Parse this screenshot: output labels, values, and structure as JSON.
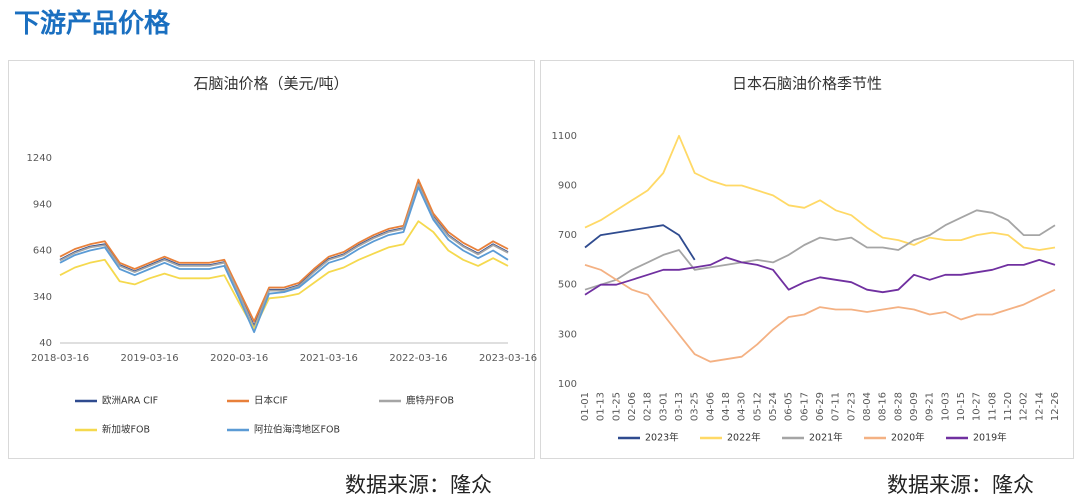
{
  "title": "下游产品价格",
  "footer": {
    "left": "数据来源：隆众",
    "right": "数据来源：隆众"
  },
  "chart_data": [
    {
      "type": "line",
      "title": "石脑油价格（美元/吨）",
      "categories": [
        "2018-03-16",
        null,
        null,
        null,
        null,
        null,
        "2019-03-16",
        null,
        null,
        null,
        null,
        null,
        "2020-03-16",
        null,
        null,
        null,
        null,
        null,
        "2021-03-16",
        null,
        null,
        null,
        null,
        null,
        "2022-03-16",
        null,
        null,
        null,
        null,
        null,
        "2023-03-16"
      ],
      "ylim": [
        40,
        1240
      ],
      "yticks": [
        40,
        340,
        640,
        940,
        1240
      ],
      "series": [
        {
          "name": "欧洲ARA CIF",
          "color": "#2f4b8f",
          "values": [
            580,
            630,
            665,
            680,
            545,
            505,
            545,
            585,
            545,
            545,
            545,
            565,
            360,
            150,
            385,
            385,
            415,
            505,
            585,
            615,
            675,
            725,
            765,
            785,
            1080,
            860,
            740,
            670,
            620,
            680,
            630
          ]
        },
        {
          "name": "日本CIF",
          "color": "#e8803a",
          "values": [
            600,
            650,
            680,
            700,
            560,
            520,
            560,
            600,
            560,
            560,
            560,
            580,
            380,
            180,
            400,
            400,
            430,
            520,
            600,
            630,
            690,
            740,
            780,
            800,
            1100,
            880,
            760,
            690,
            640,
            700,
            650
          ]
        },
        {
          "name": "鹿特丹FOB",
          "color": "#a5a5a5",
          "values": [
            575,
            625,
            660,
            675,
            540,
            500,
            540,
            580,
            540,
            540,
            540,
            560,
            355,
            140,
            380,
            380,
            410,
            500,
            580,
            610,
            670,
            720,
            760,
            780,
            1070,
            855,
            735,
            665,
            615,
            675,
            625
          ]
        },
        {
          "name": "新加坡FOB",
          "color": "#f5d94e",
          "values": [
            480,
            530,
            560,
            580,
            440,
            420,
            460,
            490,
            460,
            460,
            460,
            480,
            300,
            130,
            330,
            340,
            360,
            430,
            500,
            530,
            580,
            620,
            660,
            680,
            830,
            760,
            640,
            580,
            540,
            590,
            540
          ]
        },
        {
          "name": "阿拉伯海湾地区FOB",
          "color": "#5b9bd5",
          "values": [
            560,
            610,
            640,
            660,
            520,
            480,
            520,
            560,
            520,
            520,
            520,
            540,
            330,
            110,
            360,
            370,
            400,
            480,
            560,
            590,
            650,
            700,
            740,
            760,
            1050,
            840,
            710,
            640,
            590,
            640,
            580
          ]
        }
      ]
    },
    {
      "type": "line",
      "title": "日本石脑油价格季节性",
      "categories": [
        "01-01",
        "01-13",
        "01-25",
        "02-06",
        "02-18",
        "03-01",
        "03-13",
        "03-25",
        "04-06",
        "04-18",
        "04-30",
        "05-12",
        "05-24",
        "06-05",
        "06-17",
        "06-29",
        "07-11",
        "07-23",
        "08-04",
        "08-16",
        "08-28",
        "09-09",
        "09-21",
        "10-03",
        "10-15",
        "10-27",
        "11-08",
        "11-20",
        "12-02",
        "12-14",
        "12-26"
      ],
      "ylim": [
        100,
        1200
      ],
      "yticks": [
        100,
        300,
        500,
        700,
        900,
        1100
      ],
      "series": [
        {
          "name": "2023年",
          "color": "#2f4b8f",
          "values": [
            650,
            700,
            710,
            720,
            730,
            740,
            700,
            600,
            null,
            null,
            null,
            null,
            null,
            null,
            null,
            null,
            null,
            null,
            null,
            null,
            null,
            null,
            null,
            null,
            null,
            null,
            null,
            null,
            null,
            null,
            null
          ]
        },
        {
          "name": "2022年",
          "color": "#ffd966",
          "values": [
            730,
            760,
            800,
            840,
            880,
            950,
            1100,
            950,
            920,
            900,
            900,
            880,
            860,
            820,
            810,
            840,
            800,
            780,
            730,
            690,
            680,
            660,
            690,
            680,
            680,
            700,
            710,
            700,
            650,
            640,
            650
          ]
        },
        {
          "name": "2021年",
          "color": "#a5a5a5",
          "values": [
            480,
            500,
            520,
            560,
            590,
            620,
            640,
            560,
            570,
            580,
            590,
            600,
            590,
            620,
            660,
            690,
            680,
            690,
            650,
            650,
            640,
            680,
            700,
            740,
            770,
            800,
            790,
            760,
            700,
            700,
            740
          ]
        },
        {
          "name": "2020年",
          "color": "#f4b183",
          "values": [
            580,
            560,
            520,
            480,
            460,
            380,
            300,
            220,
            190,
            200,
            210,
            260,
            320,
            370,
            380,
            410,
            400,
            400,
            390,
            400,
            410,
            400,
            380,
            390,
            360,
            380,
            380,
            400,
            420,
            450,
            480
          ]
        },
        {
          "name": "2019年",
          "color": "#7030a0",
          "values": [
            460,
            500,
            500,
            520,
            540,
            560,
            560,
            570,
            580,
            610,
            590,
            580,
            560,
            480,
            510,
            530,
            520,
            510,
            480,
            470,
            480,
            540,
            520,
            540,
            540,
            550,
            560,
            580,
            580,
            600,
            580
          ]
        }
      ]
    }
  ]
}
